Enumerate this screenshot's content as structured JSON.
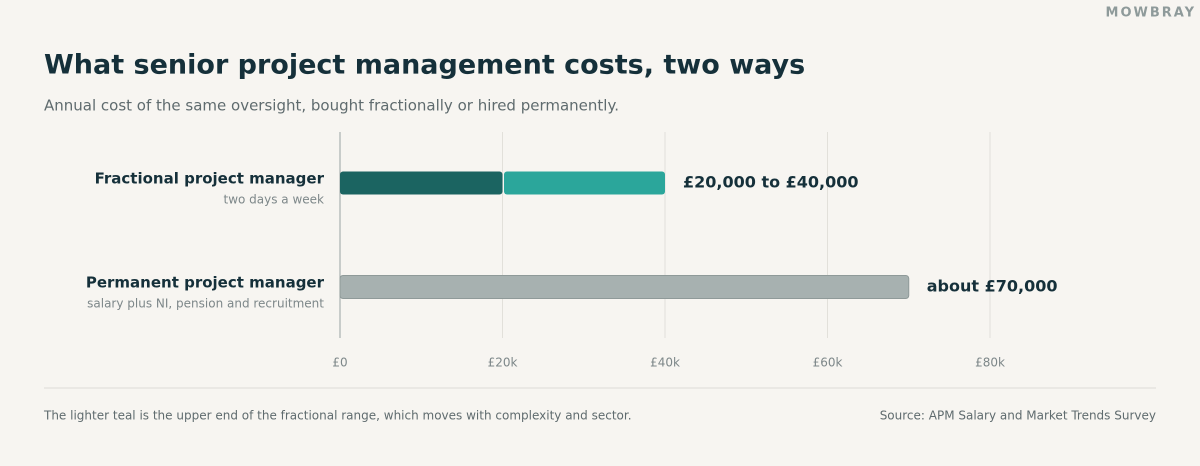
{
  "brand": "MOWBRAY",
  "chart_data": {
    "type": "bar",
    "orientation": "horizontal",
    "title": "What senior project management costs, two ways",
    "subtitle": "Annual cost of the same oversight, bought fractionally or hired permanently.",
    "categories": [
      "Fractional project manager",
      "Permanent project manager"
    ],
    "sublabels": [
      "two days a week",
      "salary plus NI, pension and recruitment"
    ],
    "series": [
      {
        "colors": [
          "#1b6461",
          "#a7b1b0"
        ],
        "values": [
          20000,
          70000
        ]
      },
      {
        "colors": [
          "#2ba69b",
          null
        ],
        "values": [
          20000,
          null
        ]
      }
    ],
    "bar_labels": [
      "£20,000 to £40,000",
      "about £70,000"
    ],
    "xlim": [
      0,
      100000
    ],
    "xticks": [
      {
        "value": 0,
        "label": "£0"
      },
      {
        "value": 20000,
        "label": "£20k"
      },
      {
        "value": 40000,
        "label": "£40k"
      },
      {
        "value": 60000,
        "label": "£60k"
      },
      {
        "value": 80000,
        "label": "£80k"
      }
    ],
    "grid": true,
    "footnote": "The lighter teal is the upper end of the fractional range, which moves with complexity and sector.",
    "source": "Source: APM Salary and Market Trends Survey"
  }
}
